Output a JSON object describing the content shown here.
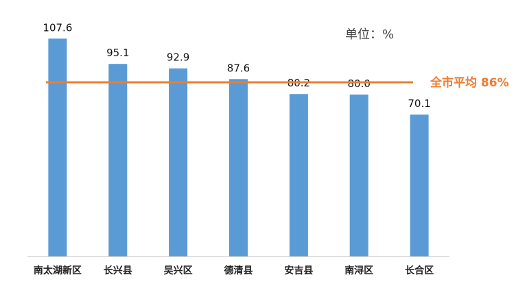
{
  "chart_data": {
    "type": "bar",
    "categories": [
      "南太湖新区",
      "长兴县",
      "吴兴区",
      "德清县",
      "安吉县",
      "南浔区",
      "长合区"
    ],
    "values": [
      107.6,
      95.1,
      92.9,
      87.6,
      80.2,
      80.0,
      70.1
    ],
    "value_labels": [
      "107.6",
      "95.1",
      "92.9",
      "87.6",
      "80.2",
      "80.0",
      "70.1"
    ],
    "unit": "单位：%",
    "ylim": [
      0,
      120
    ],
    "grid": false,
    "reference_line": {
      "value": 86,
      "label": "全市平均 86%"
    },
    "colors": {
      "bar": "#5b9bd5",
      "reference": "#ed7d31",
      "axis": "#bfbfbf"
    }
  }
}
